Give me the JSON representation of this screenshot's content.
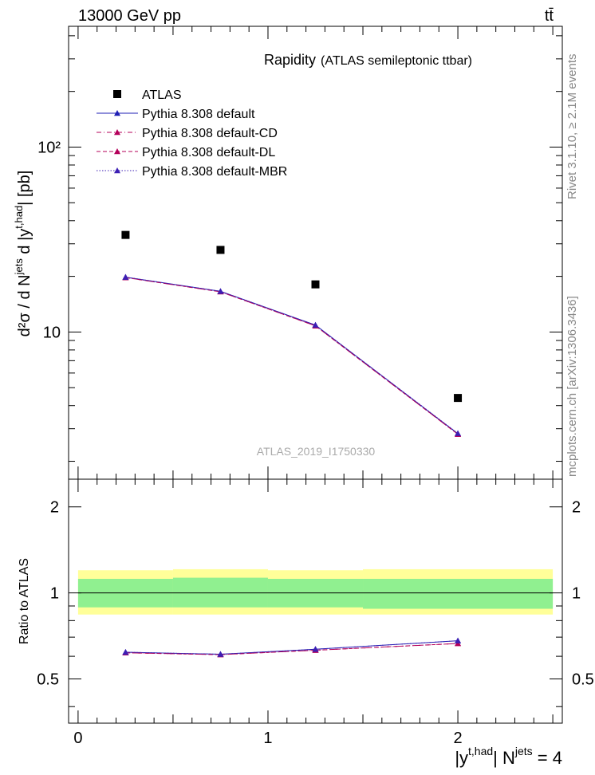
{
  "header": {
    "energy_label": "13000 GeV pp",
    "process_label": "tt̄"
  },
  "side_labels": {
    "rivet": "Rivet 3.1.10, ≥ 2.1M events",
    "mcplots": "mcplots.cern.ch [arXiv:1306.3436]"
  },
  "plot_title": "Rapidity",
  "plot_subtitle": "(ATLAS semileptonic ttbar)",
  "analysis_id": "ATLAS_2019_I1750330",
  "legend": {
    "entries": [
      {
        "label": "ATLAS",
        "color": "#000000",
        "style": "marker-square"
      },
      {
        "label": "Pythia 8.308 default",
        "color": "#1f1fb4",
        "style": "solid"
      },
      {
        "label": "Pythia 8.308 default-CD",
        "color": "#b4005a",
        "style": "dashdot"
      },
      {
        "label": "Pythia 8.308 default-DL",
        "color": "#b4005a",
        "style": "dashed"
      },
      {
        "label": "Pythia 8.308 default-MBR",
        "color": "#3c1fb4",
        "style": "dotted"
      }
    ]
  },
  "upper_yaxis": {
    "label_main": "d²σ / d N",
    "label_sup1": "jets",
    "label_mid": " d |y",
    "label_sup2": "t,had",
    "label_end": "| [pb]",
    "ticks": [
      {
        "value": 10,
        "label": "10"
      },
      {
        "value": 100,
        "label": "10²"
      }
    ]
  },
  "ratio_yaxis": {
    "label": "Ratio to ATLAS",
    "ticks": [
      {
        "value": 0.5,
        "label": "0.5"
      },
      {
        "value": 1,
        "label": "1"
      },
      {
        "value": 2,
        "label": "2"
      }
    ]
  },
  "xaxis": {
    "ticks": [
      {
        "value": 0,
        "label": "0"
      },
      {
        "value": 1,
        "label": "1"
      },
      {
        "value": 2,
        "label": "2"
      }
    ],
    "label_a": "|y",
    "label_sup_a": "t,had",
    "label_b": "| N",
    "label_sup_b": "jets",
    "label_c": " = 4"
  },
  "chart_data": {
    "type": "scatter",
    "xlim": [
      -0.05,
      2.55
    ],
    "ylim_upper": [
      1.6,
      450
    ],
    "yscale_upper": "log",
    "ylim_ratio": [
      0.35,
      2.5
    ],
    "yscale_ratio": "log",
    "x": [
      0.25,
      0.75,
      1.25,
      2.0
    ],
    "x_bins": [
      [
        0.0,
        0.5
      ],
      [
        0.5,
        1.0
      ],
      [
        1.0,
        1.5
      ],
      [
        1.5,
        2.5
      ]
    ],
    "series": [
      {
        "name": "ATLAS",
        "values": [
          33.5,
          27.8,
          18.1,
          4.4
        ]
      },
      {
        "name": "Pythia 8.308 default",
        "values": [
          19.8,
          16.6,
          10.9,
          2.82
        ]
      },
      {
        "name": "Pythia 8.308 default-CD",
        "values": [
          19.7,
          16.5,
          10.8,
          2.8
        ]
      },
      {
        "name": "Pythia 8.308 default-DL",
        "values": [
          19.7,
          16.5,
          10.8,
          2.8
        ]
      },
      {
        "name": "Pythia 8.308 default-MBR",
        "values": [
          19.8,
          16.6,
          10.9,
          2.83
        ]
      }
    ],
    "ratio_series": [
      {
        "name": "Pythia 8.308 default",
        "values": [
          0.62,
          0.61,
          0.635,
          0.68
        ]
      },
      {
        "name": "Pythia 8.308 default-CD",
        "values": [
          0.617,
          0.608,
          0.63,
          0.665
        ]
      },
      {
        "name": "Pythia 8.308 default-DL",
        "values": [
          0.617,
          0.608,
          0.63,
          0.665
        ]
      },
      {
        "name": "Pythia 8.308 default-MBR",
        "values": [
          0.62,
          0.61,
          0.635,
          0.68
        ]
      }
    ],
    "uncertainty_bands": {
      "inner": [
        [
          0.89,
          1.12
        ],
        [
          0.89,
          1.13
        ],
        [
          0.89,
          1.12
        ],
        [
          0.88,
          1.12
        ]
      ],
      "outer": [
        [
          0.84,
          1.2
        ],
        [
          0.84,
          1.21
        ],
        [
          0.84,
          1.2
        ],
        [
          0.84,
          1.21
        ]
      ],
      "inner_color": "#90f090",
      "outer_color": "#ffff99"
    }
  }
}
